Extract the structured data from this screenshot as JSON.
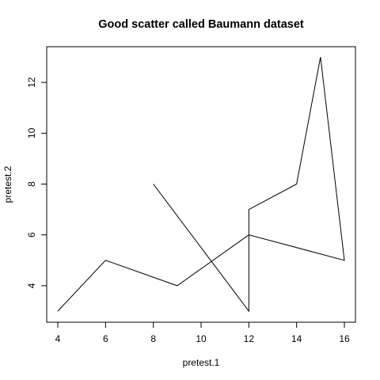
{
  "chart_data": {
    "type": "line",
    "title": "Good scatter called Baumann dataset",
    "xlabel": "pretest.1",
    "ylabel": "pretest.2",
    "xlim": [
      4,
      16
    ],
    "ylim": [
      3,
      13
    ],
    "xticks": [
      4,
      6,
      8,
      10,
      12,
      14,
      16
    ],
    "yticks": [
      4,
      6,
      8,
      10,
      12
    ],
    "grid": false,
    "series": [
      {
        "x": [
          4,
          6,
          9,
          12,
          16,
          15,
          14,
          12,
          12,
          8
        ],
        "y": [
          3,
          5,
          4,
          6,
          5,
          13,
          8,
          7,
          3,
          8
        ]
      }
    ]
  }
}
